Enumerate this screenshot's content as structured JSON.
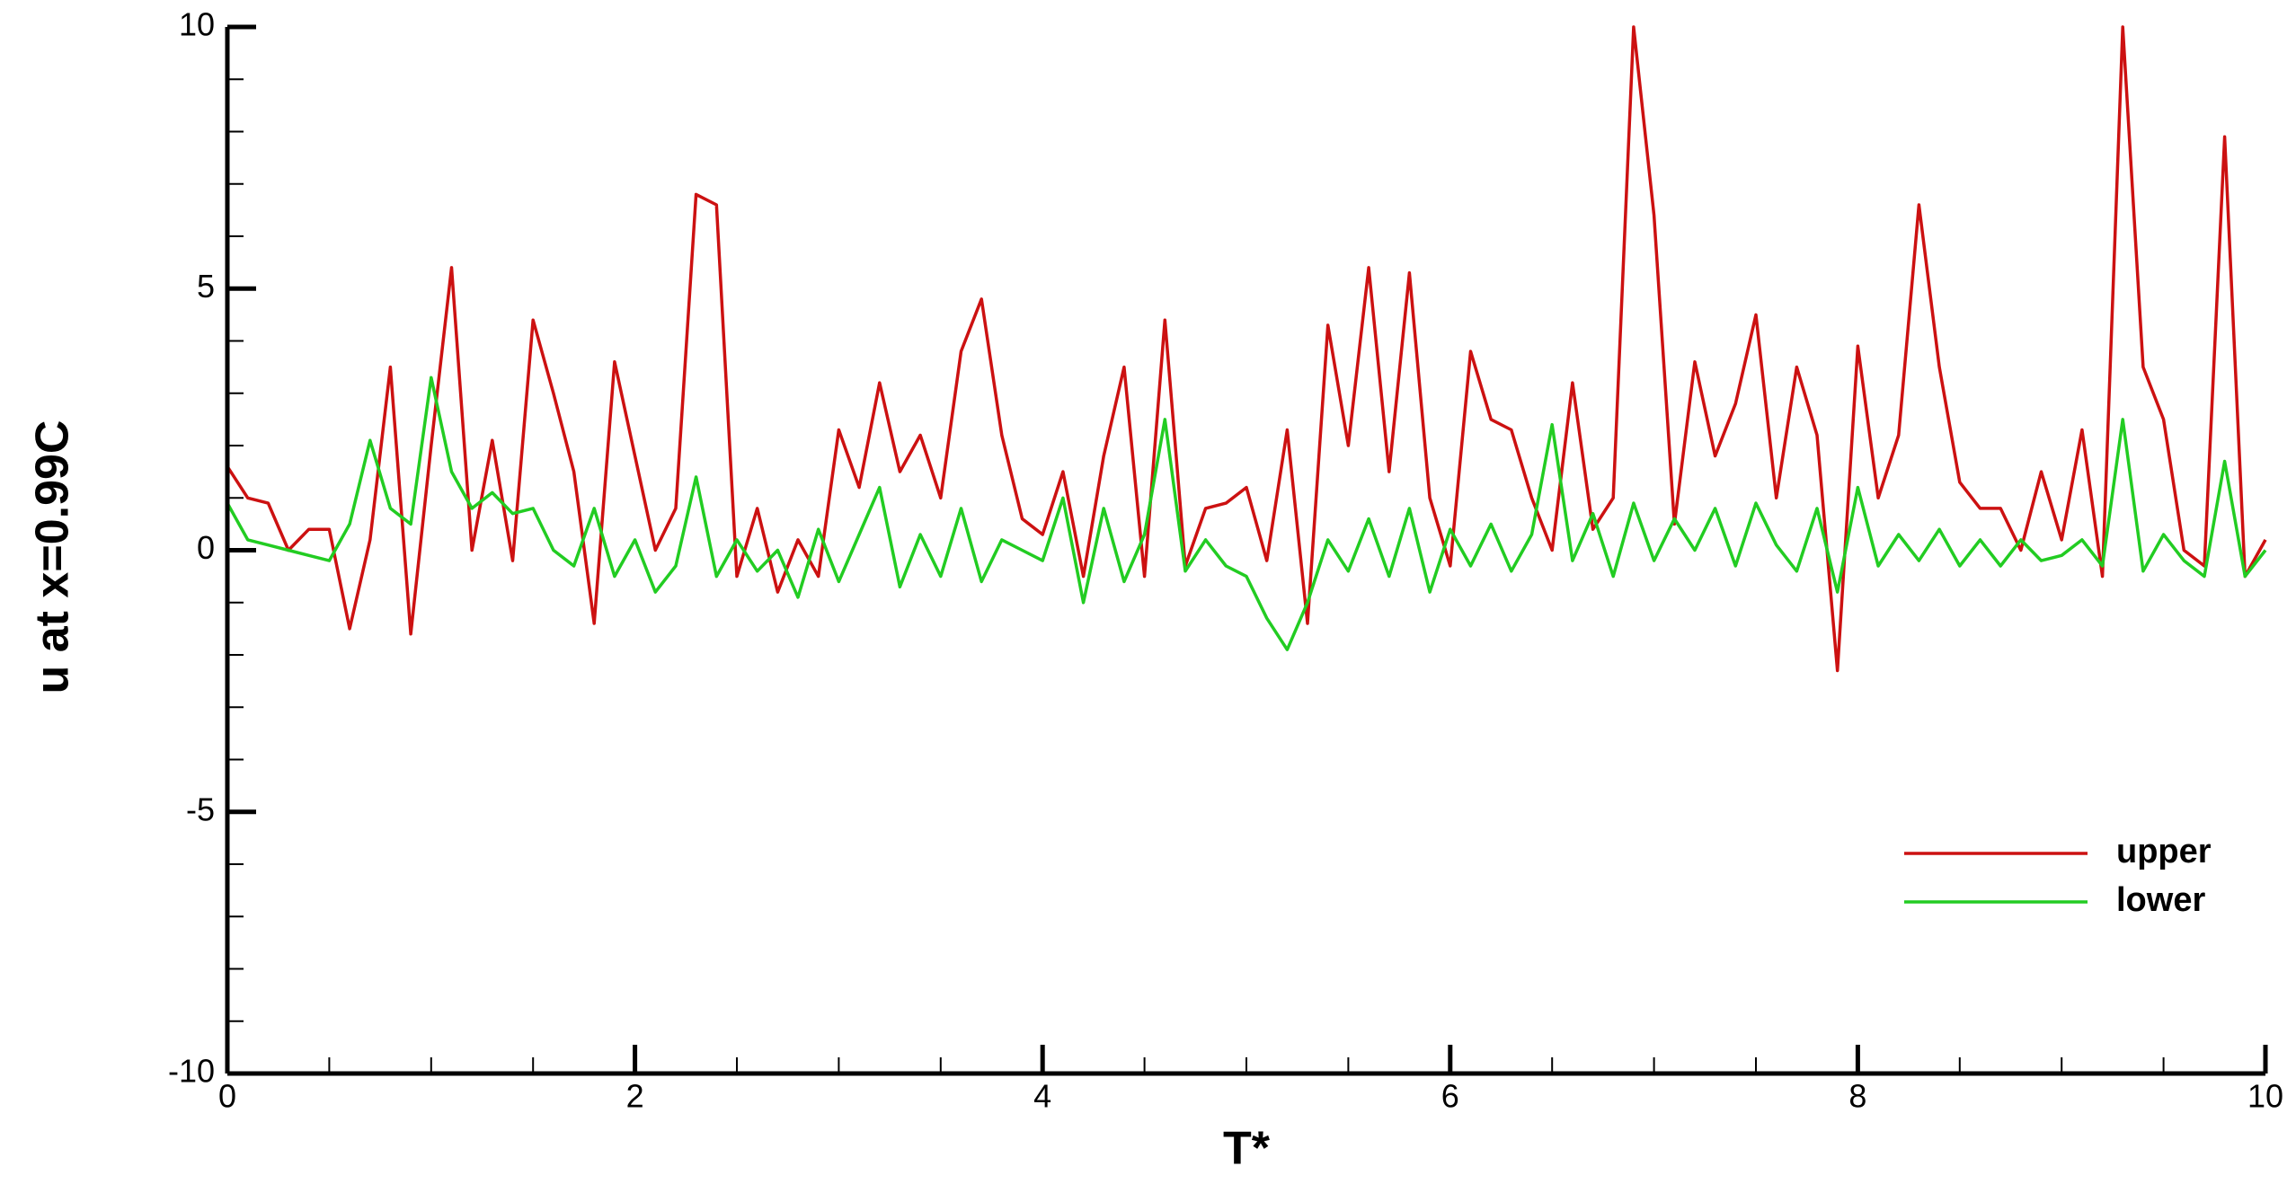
{
  "chart_data": {
    "type": "line",
    "x_label": "T*",
    "y_label": "u at x=0.99C",
    "x": [
      0,
      0.1,
      0.2,
      0.3,
      0.4,
      0.5,
      0.6,
      0.7,
      0.8,
      0.9,
      1,
      1.1,
      1.2,
      1.3,
      1.4,
      1.5,
      1.6,
      1.7,
      1.8,
      1.9,
      2,
      2.1,
      2.2,
      2.3,
      2.4,
      2.5,
      2.6,
      2.7,
      2.8,
      2.9,
      3,
      3.1,
      3.2,
      3.3,
      3.4,
      3.5,
      3.6,
      3.7,
      3.8,
      3.9,
      4,
      4.1,
      4.2,
      4.3,
      4.4,
      4.5,
      4.6,
      4.7,
      4.8,
      4.9,
      5,
      5.1,
      5.2,
      5.3,
      5.4,
      5.5,
      5.6,
      5.7,
      5.8,
      5.9,
      6,
      6.1,
      6.2,
      6.3,
      6.4,
      6.5,
      6.6,
      6.7,
      6.8,
      6.9,
      7,
      7.1,
      7.2,
      7.3,
      7.4,
      7.5,
      7.6,
      7.7,
      7.8,
      7.9,
      8,
      8.1,
      8.2,
      8.3,
      8.4,
      8.5,
      8.6,
      8.7,
      8.8,
      8.9,
      9,
      9.1,
      9.2,
      9.3,
      9.4,
      9.5,
      9.6,
      9.7,
      9.8,
      9.9,
      10
    ],
    "series": [
      {
        "name": "upper",
        "color": "#cc1111",
        "values": [
          1.6,
          1.0,
          0.9,
          0.0,
          0.4,
          0.4,
          -1.5,
          0.2,
          3.5,
          -1.6,
          2.0,
          5.4,
          0.0,
          2.1,
          -0.2,
          4.4,
          3.0,
          1.5,
          -1.4,
          3.6,
          1.8,
          0.0,
          0.8,
          6.8,
          6.6,
          -0.5,
          0.8,
          -0.8,
          0.2,
          -0.5,
          2.3,
          1.2,
          3.2,
          1.5,
          2.2,
          1.0,
          3.8,
          4.8,
          2.2,
          0.6,
          0.3,
          1.5,
          -0.5,
          1.8,
          3.5,
          -0.5,
          4.4,
          -0.3,
          0.8,
          0.9,
          1.2,
          -0.2,
          2.3,
          -1.4,
          4.3,
          2.0,
          5.4,
          1.5,
          5.3,
          1.0,
          -0.3,
          3.8,
          2.5,
          2.3,
          1.0,
          0.0,
          3.2,
          0.4,
          1.0,
          10,
          6.4,
          0.5,
          3.6,
          1.8,
          2.8,
          4.5,
          1.0,
          3.5,
          2.2,
          -2.3,
          3.9,
          1.0,
          2.2,
          6.6,
          3.5,
          1.3,
          0.8,
          0.8,
          0.0,
          1.5,
          0.2,
          2.3,
          -0.5,
          10,
          3.5,
          2.5,
          0.0,
          -0.3,
          7.9,
          -0.5,
          0.2
        ]
      },
      {
        "name": "lower",
        "color": "#22cc22",
        "values": [
          0.9,
          0.2,
          0.1,
          0.0,
          -0.1,
          -0.2,
          0.5,
          2.1,
          0.8,
          0.5,
          3.3,
          1.5,
          0.8,
          1.1,
          0.7,
          0.8,
          0.0,
          -0.3,
          0.8,
          -0.5,
          0.2,
          -0.8,
          -0.3,
          1.4,
          -0.5,
          0.2,
          -0.4,
          0.0,
          -0.9,
          0.4,
          -0.6,
          0.3,
          1.2,
          -0.7,
          0.3,
          -0.5,
          0.8,
          -0.6,
          0.2,
          0.0,
          -0.2,
          1.0,
          -1.0,
          0.8,
          -0.6,
          0.3,
          2.5,
          -0.4,
          0.2,
          -0.3,
          -0.5,
          -1.3,
          -1.9,
          -1.0,
          0.2,
          -0.4,
          0.6,
          -0.5,
          0.8,
          -0.8,
          0.4,
          -0.3,
          0.5,
          -0.4,
          0.3,
          2.4,
          -0.2,
          0.7,
          -0.5,
          0.9,
          -0.2,
          0.6,
          0.0,
          0.8,
          -0.3,
          0.9,
          0.1,
          -0.4,
          0.8,
          -0.8,
          1.2,
          -0.3,
          0.3,
          -0.2,
          0.4,
          -0.3,
          0.2,
          -0.3,
          0.2,
          -0.2,
          -0.1,
          0.2,
          -0.3,
          2.5,
          -0.4,
          0.3,
          -0.2,
          -0.5,
          1.7,
          -0.5,
          0.0
        ]
      }
    ],
    "xlim": [
      0,
      10
    ],
    "xticks": [
      0,
      2,
      4,
      6,
      8,
      10
    ],
    "ylim": [
      -10,
      10
    ],
    "yticks": [
      -10,
      -5,
      0,
      5,
      10
    ],
    "legend": "lower-right"
  }
}
